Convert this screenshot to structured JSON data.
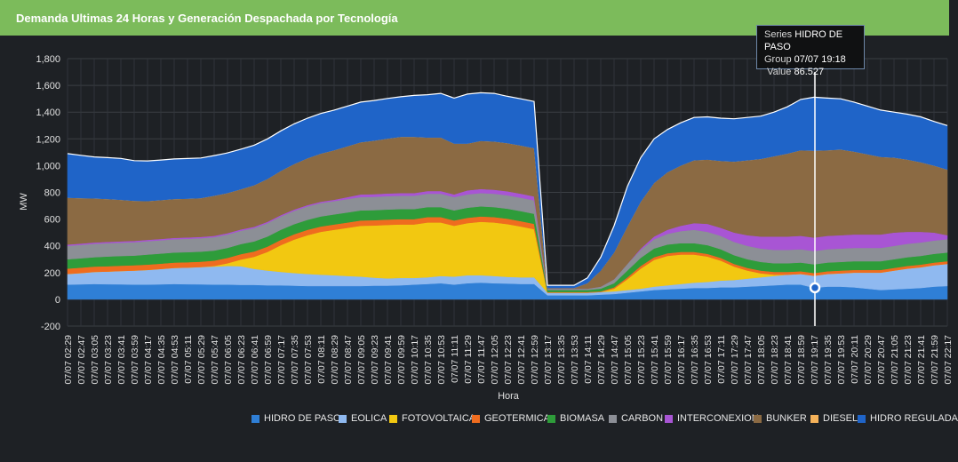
{
  "header": {
    "title": "Demanda Ultimas 24 Horas y Generación Despachada por Tecnología"
  },
  "tooltip": {
    "series_label": "Series",
    "series_value": "HIDRO DE PASO",
    "group_label": "Group",
    "group_value": "07/07 19:18",
    "value_label": "Value",
    "value_value": "86.527"
  },
  "colors": {
    "background": "#1e2125",
    "header": "#7cbb5b",
    "grid": "#3b3f44"
  },
  "chart_data": {
    "type": "area",
    "title": "Demanda Ultimas 24 Horas y Generación Despachada por Tecnología",
    "xlabel": "Hora",
    "ylabel": "MW",
    "ylim": [
      -200,
      1800
    ],
    "yticks": [
      -200,
      0,
      200,
      400,
      600,
      800,
      "1,000",
      "1,200",
      "1,400",
      "1,600",
      "1,800"
    ],
    "grid": true,
    "legend_position": "bottom-right",
    "categories": [
      "07/07 02:29",
      "07/07 02:47",
      "07/07 03:05",
      "07/07 03:23",
      "07/07 03:41",
      "07/07 03:59",
      "07/07 04:17",
      "07/07 04:35",
      "07/07 04:53",
      "07/07 05:11",
      "07/07 05:29",
      "07/07 05:47",
      "07/07 06:05",
      "07/07 06:23",
      "07/07 06:41",
      "07/07 06:59",
      "07/07 07:17",
      "07/07 07:35",
      "07/07 07:53",
      "07/07 08:11",
      "07/07 08:29",
      "07/07 08:47",
      "07/07 09:05",
      "07/07 09:23",
      "07/07 09:41",
      "07/07 09:59",
      "07/07 10:17",
      "07/07 10:35",
      "07/07 10:53",
      "07/07 11:11",
      "07/07 11:29",
      "07/07 11:47",
      "07/07 12:05",
      "07/07 12:23",
      "07/07 12:41",
      "07/07 12:59",
      "07/07 13:17",
      "07/07 13:35",
      "07/07 13:53",
      "07/07 14:11",
      "07/07 14:29",
      "07/07 14:47",
      "07/07 15:05",
      "07/07 15:23",
      "07/07 15:41",
      "07/07 15:59",
      "07/07 16:17",
      "07/07 16:35",
      "07/07 16:53",
      "07/07 17:11",
      "07/07 17:29",
      "07/07 17:47",
      "07/07 18:05",
      "07/07 18:23",
      "07/07 18:41",
      "07/07 18:59",
      "07/07 19:17",
      "07/07 19:35",
      "07/07 19:53",
      "07/07 20:11",
      "07/07 20:29",
      "07/07 20:47",
      "07/07 21:05",
      "07/07 21:23",
      "07/07 21:41",
      "07/07 21:59",
      "07/07 22:17"
    ],
    "series": [
      {
        "name": "HIDRO DE PASO",
        "color": "#2f7fd6",
        "values": [
          110,
          112,
          115,
          113,
          112,
          110,
          110,
          112,
          115,
          113,
          112,
          110,
          110,
          108,
          108,
          105,
          105,
          102,
          100,
          100,
          100,
          100,
          100,
          102,
          102,
          105,
          110,
          115,
          120,
          110,
          120,
          125,
          120,
          118,
          115,
          115,
          30,
          30,
          30,
          30,
          35,
          40,
          50,
          60,
          70,
          75,
          80,
          85,
          85,
          90,
          90,
          95,
          100,
          105,
          110,
          110,
          86.5,
          95,
          95,
          90,
          80,
          70,
          75,
          80,
          85,
          95,
          100
        ]
      },
      {
        "name": "EOLICA",
        "color": "#8fb9f0",
        "values": [
          80,
          85,
          90,
          95,
          100,
          105,
          110,
          115,
          120,
          125,
          130,
          135,
          140,
          140,
          120,
          110,
          100,
          95,
          90,
          85,
          80,
          75,
          70,
          60,
          55,
          55,
          50,
          50,
          55,
          60,
          60,
          55,
          55,
          50,
          50,
          50,
          20,
          20,
          20,
          20,
          20,
          20,
          20,
          20,
          25,
          30,
          35,
          40,
          45,
          50,
          55,
          60,
          65,
          70,
          75,
          80,
          90,
          95,
          100,
          110,
          120,
          130,
          140,
          150,
          155,
          160,
          165
        ]
      },
      {
        "name": "FOTOVOLTAICA",
        "color": "#f2c811",
        "values": [
          0,
          0,
          0,
          0,
          0,
          0,
          0,
          0,
          0,
          0,
          0,
          5,
          20,
          50,
          90,
          140,
          200,
          250,
          290,
          320,
          340,
          360,
          380,
          390,
          400,
          400,
          400,
          410,
          400,
          380,
          390,
          400,
          400,
          395,
          380,
          360,
          0,
          0,
          0,
          0,
          0,
          20,
          80,
          150,
          200,
          220,
          220,
          210,
          190,
          150,
          100,
          60,
          30,
          10,
          0,
          0,
          0,
          0,
          0,
          0,
          0,
          0,
          0,
          0,
          0,
          0,
          0
        ]
      },
      {
        "name": "GEOTERMICA",
        "color": "#ef6c1f",
        "values": [
          40,
          40,
          40,
          40,
          40,
          40,
          40,
          40,
          40,
          40,
          40,
          40,
          40,
          40,
          40,
          40,
          40,
          40,
          40,
          40,
          40,
          40,
          40,
          40,
          40,
          40,
          40,
          40,
          40,
          40,
          40,
          40,
          40,
          40,
          40,
          40,
          5,
          5,
          5,
          5,
          5,
          10,
          15,
          20,
          20,
          20,
          20,
          20,
          20,
          20,
          20,
          20,
          20,
          20,
          20,
          20,
          20,
          20,
          20,
          20,
          20,
          20,
          20,
          20,
          20,
          20,
          20
        ]
      },
      {
        "name": "BIOMASA",
        "color": "#2e9c3a",
        "values": [
          70,
          70,
          70,
          72,
          72,
          72,
          75,
          75,
          75,
          75,
          75,
          75,
          75,
          75,
          75,
          75,
          75,
          75,
          75,
          75,
          75,
          75,
          75,
          75,
          75,
          75,
          75,
          75,
          75,
          75,
          75,
          75,
          75,
          75,
          75,
          75,
          15,
          15,
          15,
          15,
          20,
          30,
          50,
          60,
          65,
          65,
          65,
          65,
          65,
          65,
          65,
          65,
          65,
          65,
          65,
          65,
          65,
          65,
          65,
          65,
          65,
          65,
          65,
          65,
          65,
          65,
          65
        ]
      },
      {
        "name": "CARBON",
        "color": "#8c8f96",
        "values": [
          100,
          100,
          100,
          100,
          100,
          100,
          100,
          100,
          100,
          100,
          100,
          100,
          100,
          100,
          100,
          100,
          100,
          100,
          100,
          100,
          100,
          100,
          100,
          100,
          100,
          100,
          100,
          100,
          100,
          100,
          100,
          100,
          100,
          100,
          100,
          100,
          10,
          10,
          10,
          10,
          15,
          30,
          50,
          60,
          70,
          80,
          90,
          100,
          100,
          100,
          100,
          100,
          100,
          100,
          100,
          100,
          100,
          100,
          100,
          100,
          100,
          100,
          100,
          100,
          100,
          100,
          100
        ]
      },
      {
        "name": "INTERCONEXION",
        "color": "#a855d4",
        "values": [
          10,
          10,
          10,
          10,
          10,
          10,
          10,
          10,
          10,
          10,
          10,
          10,
          10,
          10,
          10,
          10,
          10,
          10,
          10,
          10,
          10,
          15,
          20,
          20,
          20,
          20,
          20,
          20,
          20,
          20,
          30,
          30,
          30,
          30,
          30,
          30,
          0,
          0,
          0,
          0,
          0,
          0,
          0,
          10,
          20,
          30,
          40,
          50,
          60,
          60,
          70,
          80,
          90,
          100,
          100,
          100,
          100,
          100,
          100,
          100,
          100,
          100,
          100,
          90,
          80,
          60,
          30
        ]
      },
      {
        "name": "BUNKER",
        "color": "#8b6a43",
        "values": [
          350,
          340,
          330,
          320,
          310,
          300,
          290,
          290,
          290,
          290,
          290,
          300,
          300,
          300,
          310,
          320,
          330,
          340,
          350,
          360,
          370,
          380,
          390,
          400,
          410,
          420,
          420,
          400,
          400,
          380,
          350,
          360,
          360,
          360,
          360,
          360,
          5,
          5,
          5,
          40,
          120,
          200,
          280,
          350,
          400,
          430,
          450,
          470,
          480,
          500,
          530,
          560,
          580,
          600,
          620,
          640,
          650,
          640,
          640,
          620,
          600,
          580,
          560,
          540,
          520,
          500,
          490
        ]
      },
      {
        "name": "DIESEL",
        "color": "#f5b25a",
        "values": [
          0,
          0,
          0,
          0,
          0,
          0,
          0,
          0,
          0,
          0,
          0,
          0,
          0,
          0,
          0,
          0,
          0,
          0,
          0,
          0,
          0,
          0,
          0,
          0,
          0,
          0,
          0,
          0,
          0,
          0,
          0,
          0,
          0,
          0,
          0,
          0,
          0,
          0,
          0,
          0,
          0,
          0,
          0,
          0,
          0,
          0,
          0,
          0,
          0,
          0,
          0,
          0,
          0,
          0,
          0,
          0,
          0,
          0,
          0,
          0,
          0,
          0,
          0,
          0,
          0,
          0,
          0
        ]
      },
      {
        "name": "HIDRO REGULADA",
        "color": "#1f64c8",
        "values": [
          330,
          320,
          310,
          310,
          310,
          300,
          300,
          300,
          300,
          300,
          300,
          300,
          300,
          300,
          300,
          300,
          300,
          300,
          300,
          300,
          300,
          300,
          300,
          300,
          300,
          300,
          310,
          320,
          330,
          340,
          370,
          360,
          360,
          350,
          350,
          350,
          20,
          20,
          20,
          40,
          100,
          200,
          300,
          330,
          330,
          320,
          320,
          320,
          320,
          320,
          320,
          320,
          320,
          330,
          350,
          380,
          400,
          390,
          380,
          370,
          360,
          350,
          340,
          340,
          340,
          330,
          330
        ]
      }
    ]
  }
}
